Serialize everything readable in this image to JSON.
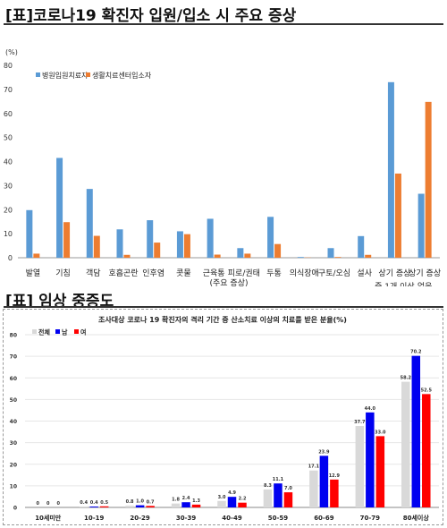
{
  "sections": [
    {
      "title": "[표]코로나19 확진자 입원/입소 시 주요 증상"
    },
    {
      "title": "[표] 임상 중증도"
    }
  ],
  "colors": {
    "hospital": "#5B9BD5",
    "center": "#ED7D31",
    "total": "#D9D9D9",
    "male": "#0000F0",
    "female": "#FF0000",
    "axis": "#808080"
  },
  "chart_data": [
    {
      "type": "bar",
      "unit_label": "(%)",
      "ylim": [
        0,
        80
      ],
      "yticks": [
        0,
        10,
        20,
        30,
        40,
        50,
        60,
        70,
        80
      ],
      "grid": false,
      "legend_position": "top-left",
      "categories": [
        [
          "발열"
        ],
        [
          "기침"
        ],
        [
          "객담"
        ],
        [
          "호흡곤란"
        ],
        [
          "인후염"
        ],
        [
          "콧물"
        ],
        [
          "근육통"
        ],
        [
          "피로/권태"
        ],
        [
          "두통"
        ],
        [
          "의식장애"
        ],
        [
          "구토/오심"
        ],
        [
          "설사"
        ],
        [
          "상기 증상",
          "중 1개 이상"
        ],
        [
          "상기 증상",
          "없음"
        ]
      ],
      "group_label": "(주요 증상)",
      "series": [
        {
          "name": "병원입원치료자",
          "values": [
            19.8,
            41.5,
            28.6,
            11.8,
            15.6,
            11.0,
            16.2,
            4.0,
            17.0,
            0.3,
            4.0,
            9.0,
            73.0,
            26.6
          ]
        },
        {
          "name": "생활치료센터입소자",
          "values": [
            1.7,
            14.8,
            9.1,
            1.2,
            6.3,
            9.8,
            1.3,
            1.7,
            5.7,
            0.1,
            0.3,
            1.2,
            35.0,
            64.8
          ]
        }
      ]
    },
    {
      "type": "bar",
      "title": "조사대상 코로나 19 확진자의 격리 기간 중 산소치료 이상의 치료를 받은 분율(%)",
      "ylim": [
        0,
        80
      ],
      "yticks": [
        0,
        10,
        20,
        30,
        40,
        50,
        60,
        70,
        80
      ],
      "grid": true,
      "legend_position": "top-left",
      "categories": [
        "10세미만",
        "10-19",
        "20-29",
        "30-39",
        "40-49",
        "50-59",
        "60-69",
        "70-79",
        "80세이상"
      ],
      "series": [
        {
          "name": "전체",
          "values": [
            0,
            0.4,
            0.8,
            1.8,
            3.0,
            8.3,
            17.1,
            37.7,
            58.2
          ],
          "labels": [
            "0",
            "0.4",
            "0.8",
            "1.8",
            "3.0",
            "8.3",
            "17.1",
            "37.7",
            "58.2"
          ]
        },
        {
          "name": "남",
          "values": [
            0,
            0.4,
            1.0,
            2.4,
            4.9,
            11.1,
            23.9,
            44.0,
            70.2
          ],
          "labels": [
            "0",
            "0.4",
            "1.0",
            "2.4",
            "4.9",
            "11.1",
            "23.9",
            "44.0",
            "70.2"
          ]
        },
        {
          "name": "여",
          "values": [
            0,
            0.5,
            0.7,
            1.3,
            2.2,
            7.0,
            12.9,
            33.0,
            52.5
          ],
          "labels": [
            "0",
            "0.5",
            "0.7",
            "1.3",
            "2.2",
            "7.0",
            "12.9",
            "33.0",
            "52.5"
          ]
        }
      ]
    }
  ]
}
